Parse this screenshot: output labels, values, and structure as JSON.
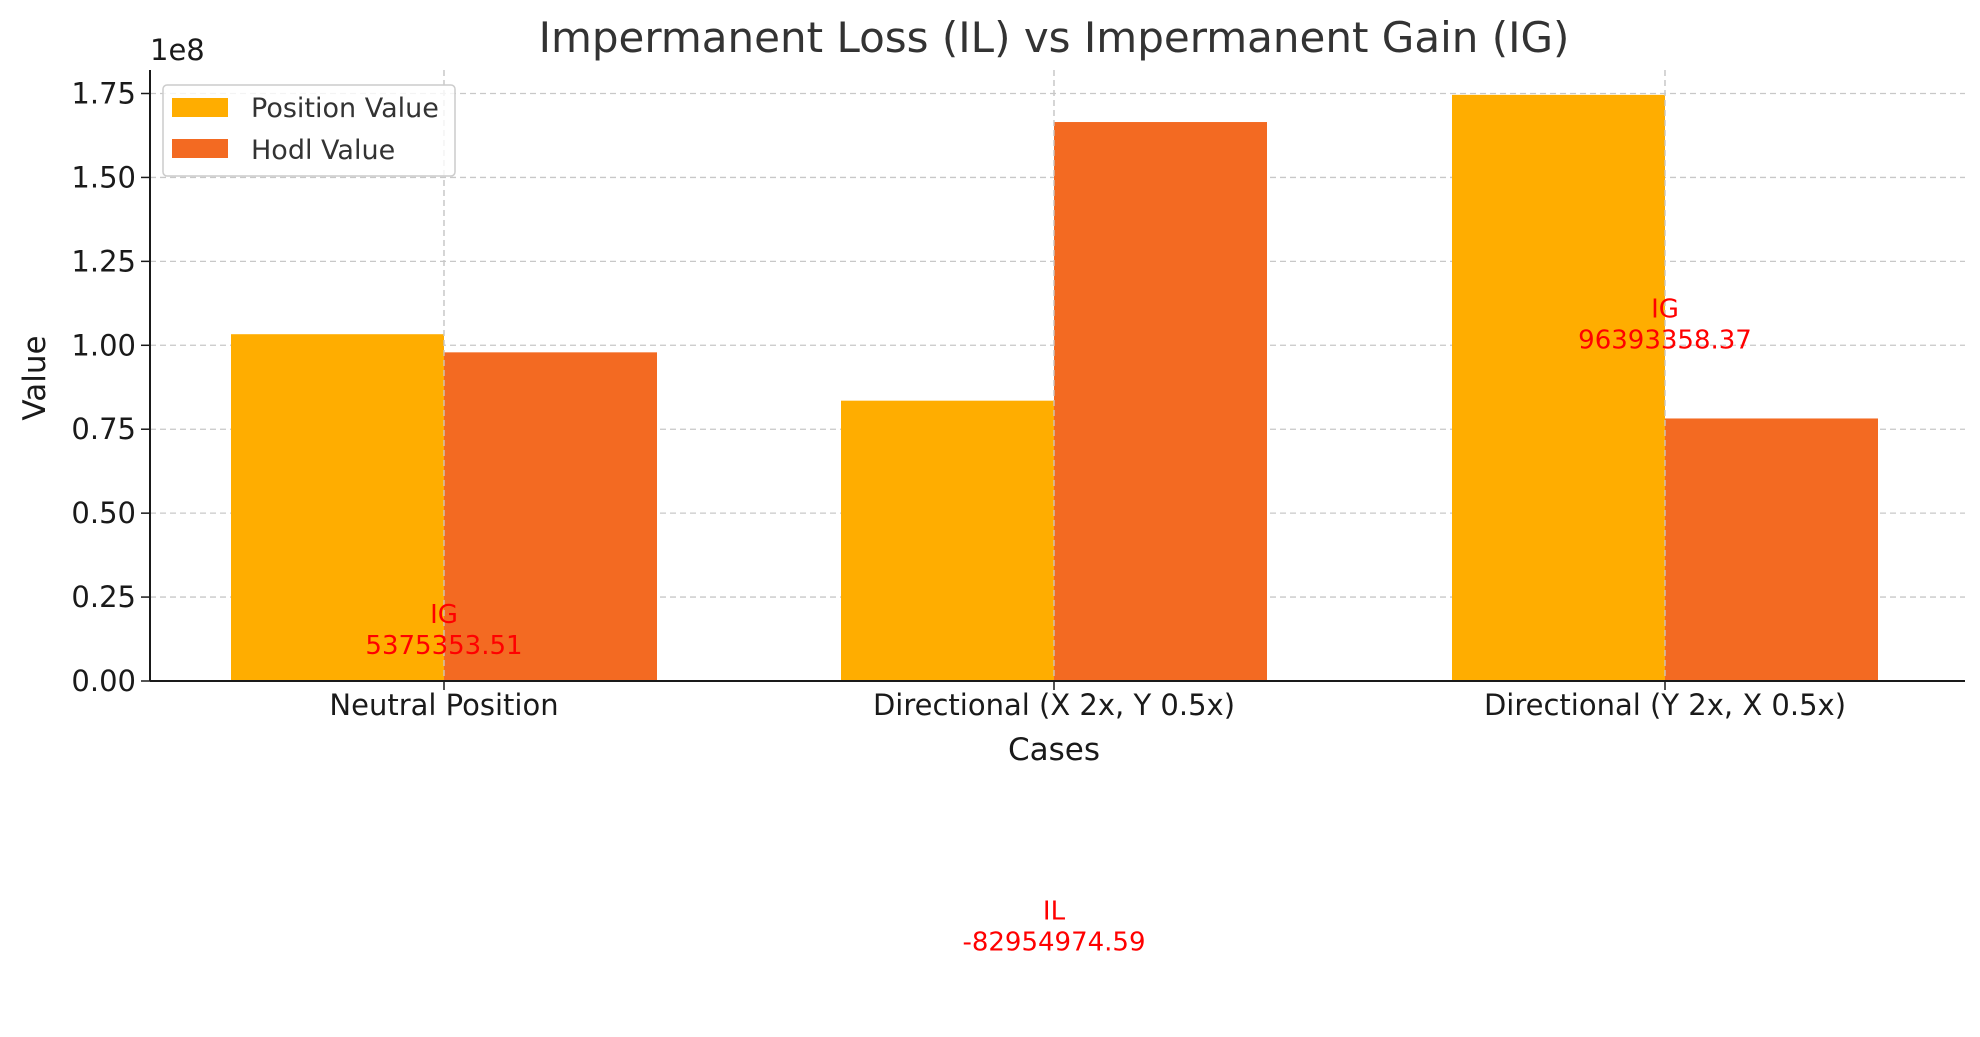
{
  "chart_data": {
    "type": "bar",
    "title": "Impermanent Loss (IL) vs Impermanent Gain (IG)",
    "xlabel": "Cases",
    "ylabel": "Value",
    "offset_label": "1e8",
    "categories": [
      "Neutral Position",
      "Directional (X 2x, Y 0.5x)",
      "Directional (Y 2x, X 0.5x)"
    ],
    "series": [
      {
        "name": "Position Value",
        "color": "#ffad00",
        "values": [
          103300000,
          83500000,
          174600000
        ]
      },
      {
        "name": "Hodl Value",
        "color": "#f36a22",
        "values": [
          97900000,
          166500000,
          78200000
        ]
      }
    ],
    "ylim": [
      0,
      182000000
    ],
    "yticks": [
      0,
      25000000,
      50000000,
      75000000,
      100000000,
      125000000,
      150000000,
      175000000
    ],
    "ytick_labels": [
      "0.00",
      "0.25",
      "0.50",
      "0.75",
      "1.00",
      "1.25",
      "1.50",
      "1.75"
    ],
    "grid": true,
    "legend_position": "upper-left",
    "annotations": [
      {
        "category_index": 0,
        "label": "IG",
        "value_text": "5375353.51",
        "value": 5375353.51,
        "color": "#ff0000"
      },
      {
        "category_index": 1,
        "label": "IL",
        "value_text": "-82954974.59",
        "value": -82954974.59,
        "color": "#ff0000"
      },
      {
        "category_index": 2,
        "label": "IG",
        "value_text": "96393358.37",
        "value": 96393358.37,
        "color": "#ff0000"
      }
    ]
  }
}
